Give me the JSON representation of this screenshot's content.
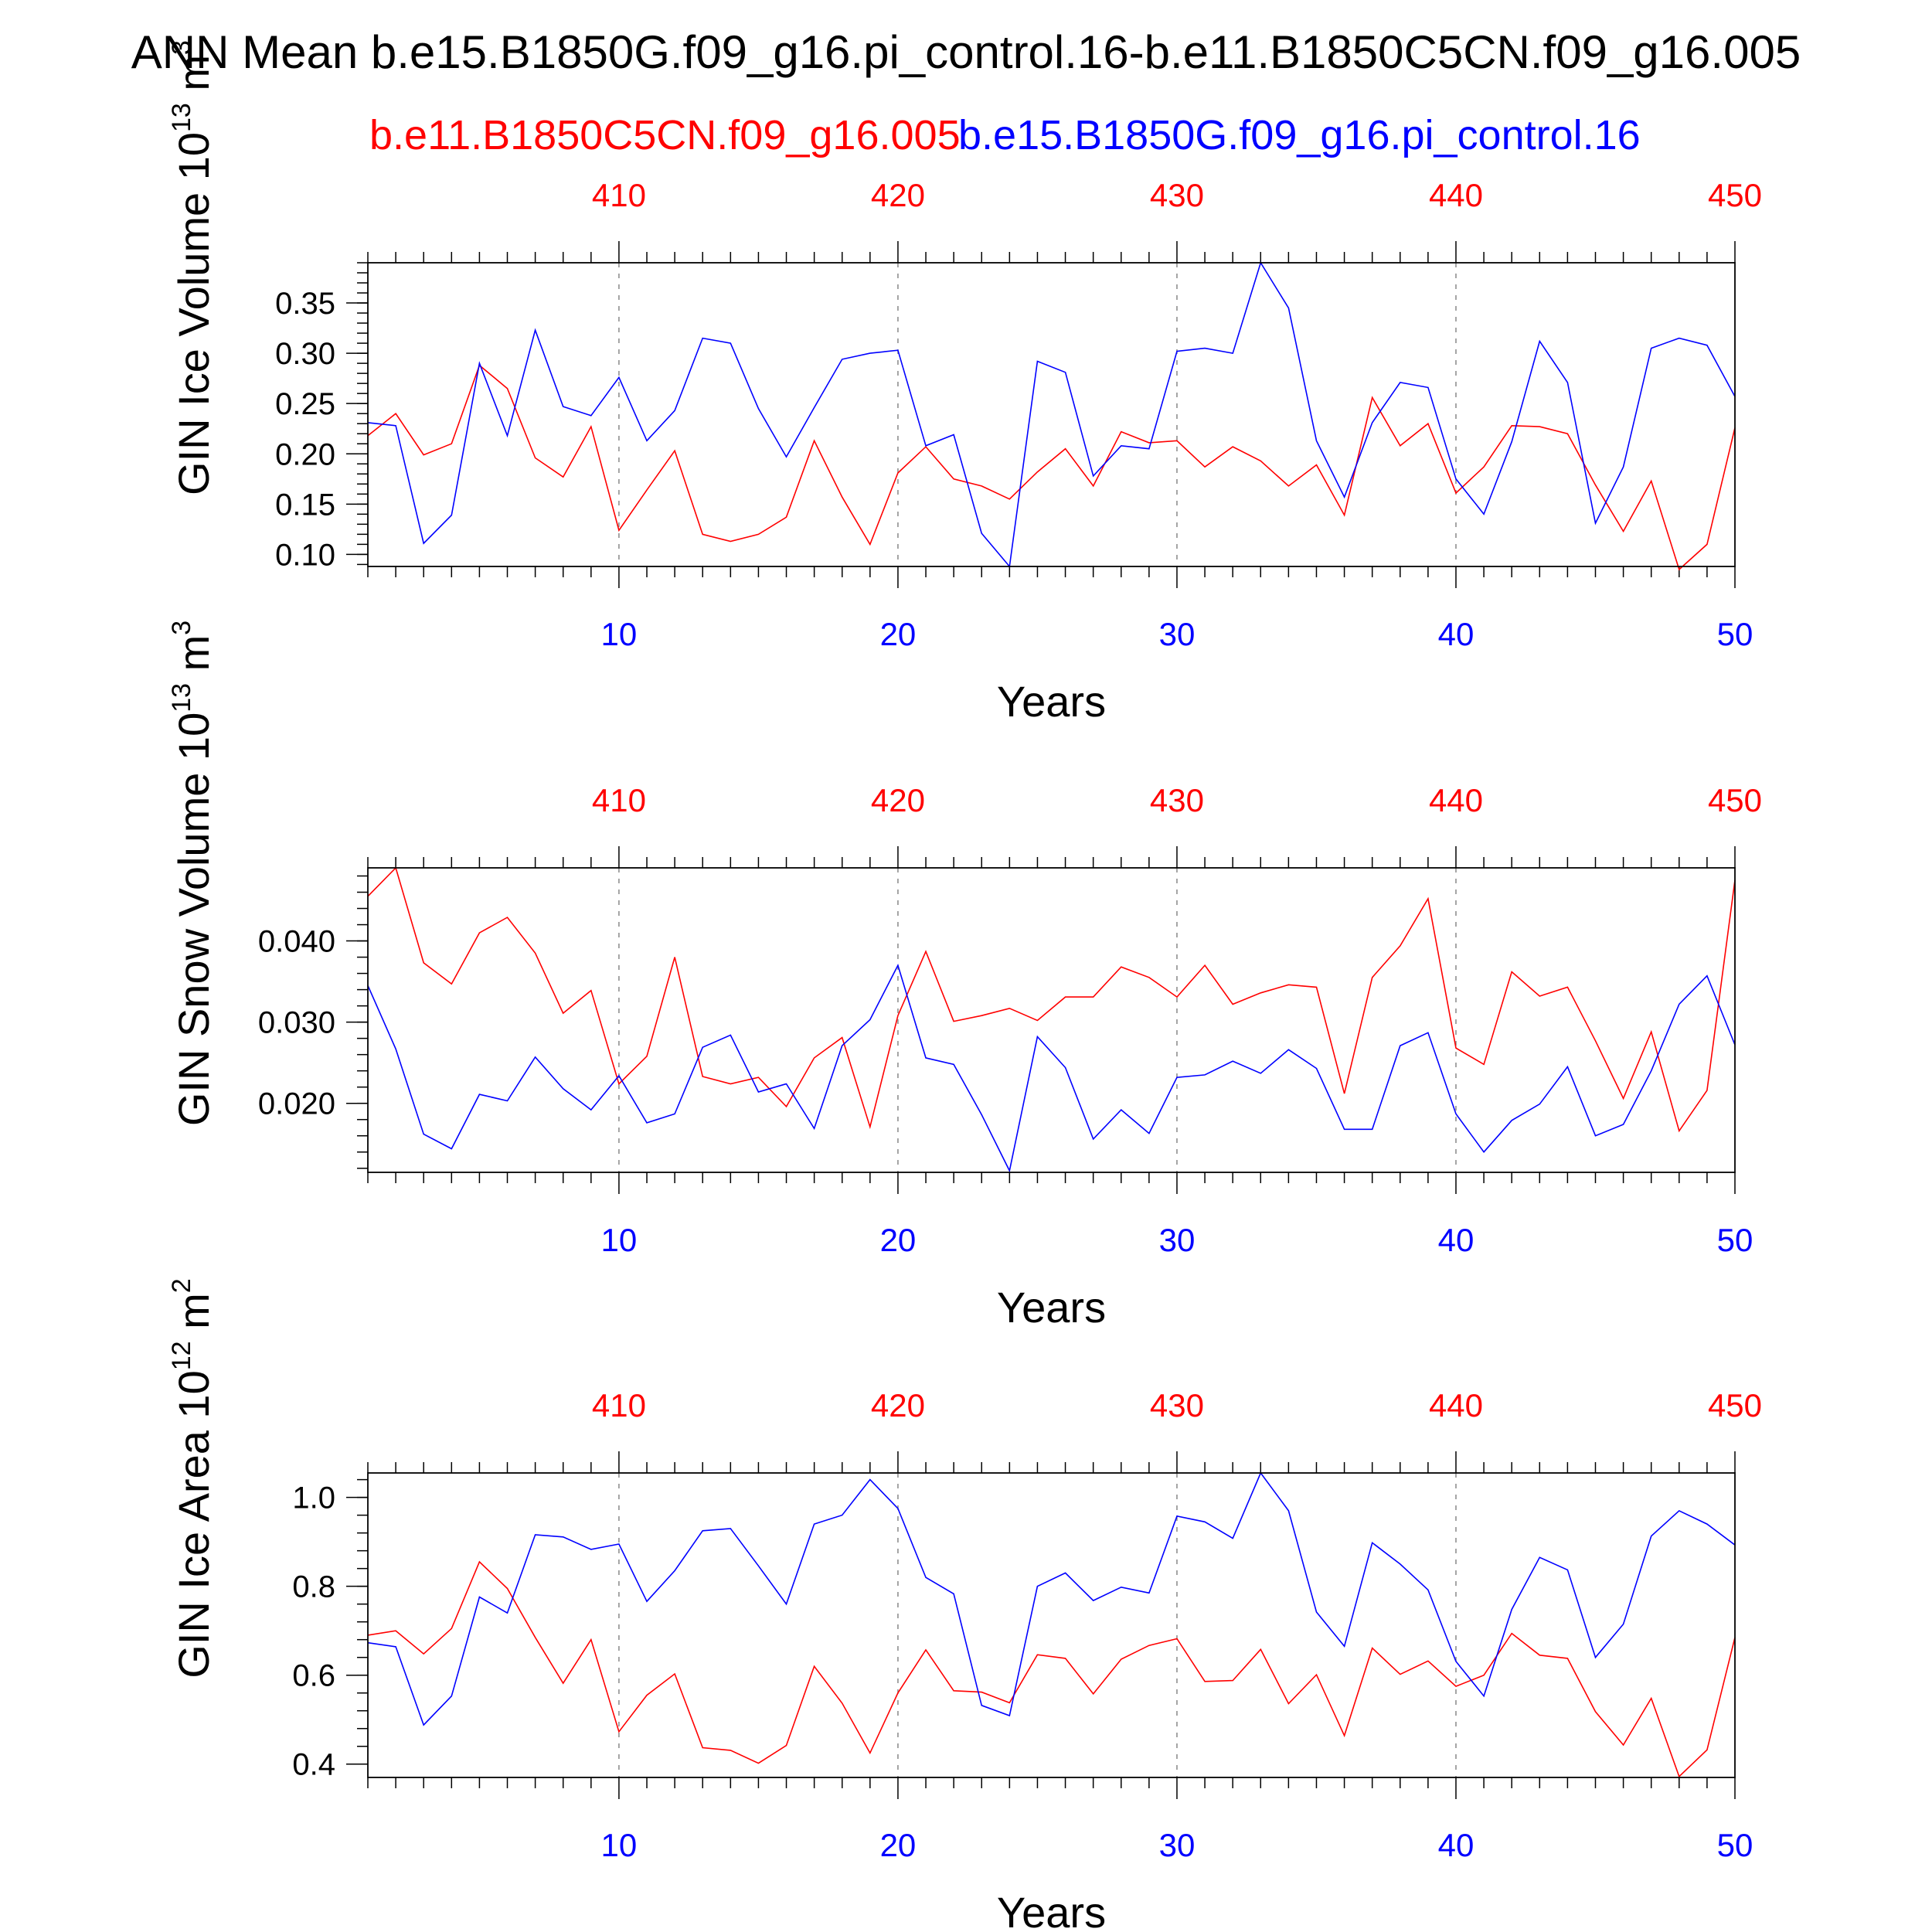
{
  "title": "ANN Mean b.e15.B1850G.f09_g16.pi_control.16-b.e11.B1850C5CN.f09_g16.005",
  "legend": {
    "red_label": "b.e11.B1850C5CN.f09_g16.005",
    "blue_label": "b.e15.B1850G.f09_g16.pi_control.16"
  },
  "colors": {
    "red": "#ff0000",
    "blue": "#0000ff",
    "axis": "#000000",
    "grid": "#888888"
  },
  "chart_data": [
    {
      "type": "line",
      "ylabel": "GIN Ice Volume 10",
      "ylabel_sup": "13",
      "ylabel_unit": "m",
      "ylabel_unit_sup": "3",
      "xlabel": "Years",
      "xlim": [
        1,
        50
      ],
      "ylim": [
        0.088,
        0.39
      ],
      "yticks": [
        0.1,
        0.15,
        0.2,
        0.25,
        0.3,
        0.35
      ],
      "yticklabels": [
        "0.10",
        "0.15",
        "0.20",
        "0.25",
        "0.30",
        "0.35"
      ],
      "yminor": 0.01,
      "bottom_xticks": [
        10,
        20,
        30,
        40,
        50
      ],
      "bottom_xticklabels": [
        "10",
        "20",
        "30",
        "40",
        "50"
      ],
      "top_xticks": [
        10,
        20,
        30,
        40,
        50
      ],
      "top_xticklabels": [
        "410",
        "420",
        "430",
        "440",
        "450"
      ],
      "series": [
        {
          "name": "b.e11.B1850C5CN.f09_g16.005",
          "color": "#ff0000",
          "values": [
            0.218,
            0.24,
            0.199,
            0.21,
            0.288,
            0.265,
            0.196,
            0.177,
            0.227,
            0.124,
            0.164,
            0.203,
            0.12,
            0.113,
            0.12,
            0.137,
            0.213,
            0.157,
            0.11,
            0.181,
            0.207,
            0.175,
            0.168,
            0.155,
            0.182,
            0.205,
            0.168,
            0.222,
            0.211,
            0.213,
            0.187,
            0.207,
            0.193,
            0.168,
            0.189,
            0.139,
            0.256,
            0.208,
            0.23,
            0.161,
            0.187,
            0.228,
            0.227,
            0.22,
            0.169,
            0.123,
            0.173,
            0.085,
            0.11,
            0.226
          ]
        },
        {
          "name": "b.e15.B1850G.f09_g16.pi_control.16",
          "color": "#0000ff",
          "values": [
            0.231,
            0.228,
            0.111,
            0.139,
            0.29,
            0.218,
            0.323,
            0.247,
            0.238,
            0.276,
            0.213,
            0.243,
            0.315,
            0.31,
            0.245,
            0.197,
            0.246,
            0.294,
            0.3,
            0.303,
            0.208,
            0.219,
            0.121,
            0.088,
            0.292,
            0.281,
            0.178,
            0.208,
            0.205,
            0.302,
            0.305,
            0.3,
            0.39,
            0.345,
            0.213,
            0.157,
            0.231,
            0.271,
            0.266,
            0.175,
            0.14,
            0.212,
            0.312,
            0.271,
            0.131,
            0.187,
            0.305,
            0.315,
            0.308,
            0.257
          ]
        }
      ]
    },
    {
      "type": "line",
      "ylabel": "GIN Snow Volume 10",
      "ylabel_sup": "13",
      "ylabel_unit": "m",
      "ylabel_unit_sup": "3",
      "xlabel": "Years",
      "xlim": [
        1,
        50
      ],
      "ylim": [
        0.0115,
        0.049
      ],
      "yticks": [
        0.02,
        0.03,
        0.04
      ],
      "yticklabels": [
        "0.020",
        "0.030",
        "0.040"
      ],
      "yminor": 0.002,
      "bottom_xticks": [
        10,
        20,
        30,
        40,
        50
      ],
      "bottom_xticklabels": [
        "10",
        "20",
        "30",
        "40",
        "50"
      ],
      "top_xticks": [
        10,
        20,
        30,
        40,
        50
      ],
      "top_xticklabels": [
        "410",
        "420",
        "430",
        "440",
        "450"
      ],
      "series": [
        {
          "name": "b.e11.B1850C5CN.f09_g16.005",
          "color": "#ff0000",
          "values": [
            0.0455,
            0.049,
            0.0373,
            0.0347,
            0.041,
            0.0429,
            0.0385,
            0.0311,
            0.0339,
            0.0224,
            0.0258,
            0.038,
            0.0233,
            0.0224,
            0.0232,
            0.0196,
            0.0256,
            0.0281,
            0.0171,
            0.0308,
            0.0387,
            0.0301,
            0.0308,
            0.0317,
            0.0302,
            0.0331,
            0.0331,
            0.0368,
            0.0355,
            0.0331,
            0.037,
            0.0322,
            0.0336,
            0.0346,
            0.0343,
            0.0212,
            0.0355,
            0.0394,
            0.0452,
            0.0268,
            0.0248,
            0.0362,
            0.0332,
            0.0343,
            0.0277,
            0.0206,
            0.0288,
            0.0166,
            0.0216,
            0.0475
          ]
        },
        {
          "name": "b.e15.B1850G.f09_g16.pi_control.16",
          "color": "#0000ff",
          "values": [
            0.0345,
            0.0267,
            0.0162,
            0.0144,
            0.0211,
            0.0203,
            0.0257,
            0.0218,
            0.0192,
            0.0234,
            0.0176,
            0.0187,
            0.0269,
            0.0284,
            0.0214,
            0.0224,
            0.0169,
            0.0271,
            0.0303,
            0.037,
            0.0256,
            0.0248,
            0.0186,
            0.0117,
            0.0282,
            0.0244,
            0.0156,
            0.0192,
            0.0163,
            0.0232,
            0.0235,
            0.0252,
            0.0237,
            0.0266,
            0.0243,
            0.0168,
            0.0168,
            0.0271,
            0.0287,
            0.0187,
            0.014,
            0.0179,
            0.0199,
            0.0245,
            0.016,
            0.0174,
            0.024,
            0.0322,
            0.0357,
            0.0272
          ]
        }
      ]
    },
    {
      "type": "line",
      "ylabel": "GIN Ice Area 10",
      "ylabel_sup": "12",
      "ylabel_unit": "m",
      "ylabel_unit_sup": "2",
      "xlabel": "Years",
      "xlim": [
        1,
        50
      ],
      "ylim": [
        0.37,
        1.055
      ],
      "yticks": [
        0.4,
        0.6,
        0.8,
        1.0
      ],
      "yticklabels": [
        "0.4",
        "0.6",
        "0.8",
        "1.0"
      ],
      "yminor": 0.04,
      "bottom_xticks": [
        10,
        20,
        30,
        40,
        50
      ],
      "bottom_xticklabels": [
        "10",
        "20",
        "30",
        "40",
        "50"
      ],
      "top_xticks": [
        10,
        20,
        30,
        40,
        50
      ],
      "top_xticklabels": [
        "410",
        "420",
        "430",
        "440",
        "450"
      ],
      "series": [
        {
          "name": "b.e11.B1850C5CN.f09_g16.005",
          "color": "#ff0000",
          "values": [
            0.69,
            0.7,
            0.648,
            0.705,
            0.855,
            0.795,
            0.685,
            0.582,
            0.68,
            0.473,
            0.555,
            0.603,
            0.437,
            0.431,
            0.402,
            0.442,
            0.62,
            0.537,
            0.425,
            0.56,
            0.657,
            0.565,
            0.562,
            0.538,
            0.646,
            0.638,
            0.558,
            0.636,
            0.667,
            0.682,
            0.586,
            0.588,
            0.658,
            0.536,
            0.601,
            0.464,
            0.661,
            0.602,
            0.632,
            0.575,
            0.6,
            0.694,
            0.645,
            0.638,
            0.518,
            0.443,
            0.548,
            0.372,
            0.432,
            0.685
          ]
        },
        {
          "name": "b.e15.B1850G.f09_g16.pi_control.16",
          "color": "#0000ff",
          "values": [
            0.673,
            0.664,
            0.488,
            0.553,
            0.776,
            0.74,
            0.916,
            0.911,
            0.883,
            0.895,
            0.766,
            0.835,
            0.925,
            0.93,
            0.846,
            0.76,
            0.94,
            0.96,
            1.04,
            0.975,
            0.82,
            0.783,
            0.532,
            0.509,
            0.8,
            0.83,
            0.768,
            0.798,
            0.785,
            0.958,
            0.945,
            0.908,
            1.055,
            0.97,
            0.742,
            0.665,
            0.898,
            0.85,
            0.792,
            0.631,
            0.553,
            0.748,
            0.865,
            0.837,
            0.64,
            0.715,
            0.913,
            0.97,
            0.94,
            0.893
          ]
        }
      ]
    }
  ]
}
